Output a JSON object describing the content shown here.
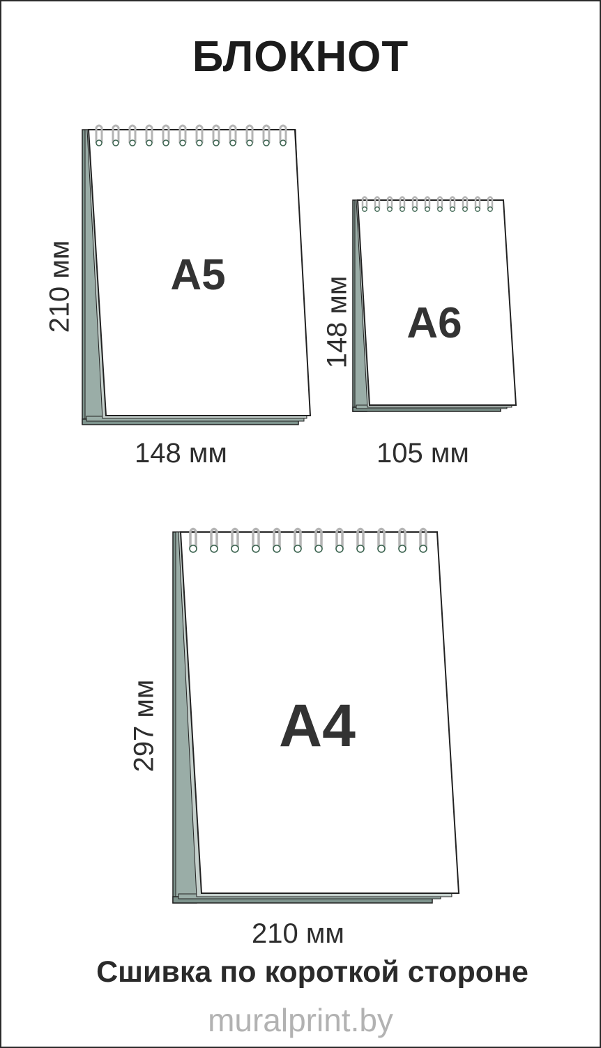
{
  "title": "БЛОКНОТ",
  "notebooks": [
    {
      "format": "A5",
      "width_label": "148 мм",
      "height_label": "210 мм"
    },
    {
      "format": "A6",
      "width_label": "105 мм",
      "height_label": "148 мм"
    },
    {
      "format": "A4",
      "width_label": "210 мм",
      "height_label": "297 мм"
    }
  ],
  "binding_note": "Сшивка по короткой стороне",
  "website": "muralprint.by",
  "colors": {
    "stack_dark": "#7d938c",
    "stack_mid": "#9aada7",
    "stack_light": "#c5d0cc",
    "page": "#ffffff",
    "outline": "#222222",
    "ring": "#b4b4b4",
    "ring_hole": "#3c6450",
    "website_text": "#b2b2b2"
  }
}
